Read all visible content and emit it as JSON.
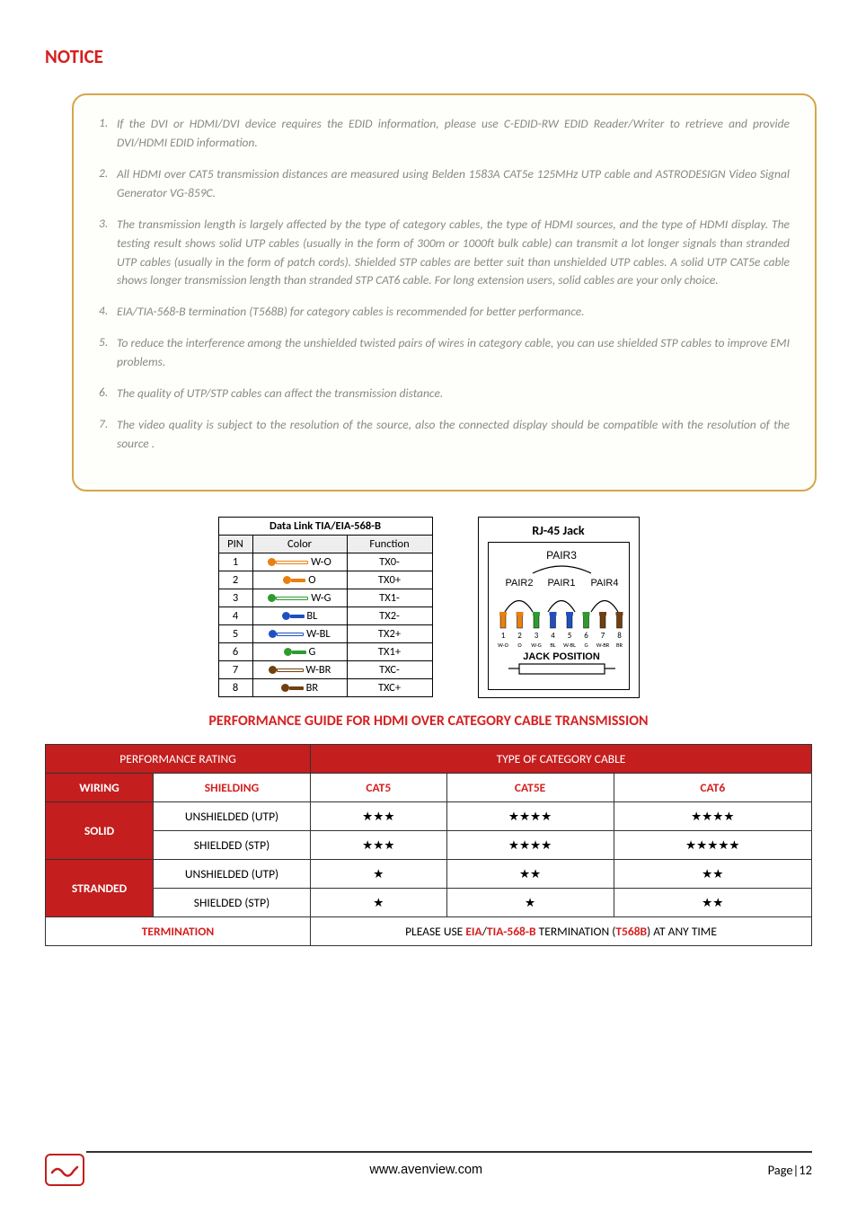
{
  "notice": {
    "title": "NOTICE",
    "items": [
      {
        "n": "1.",
        "t": "If the DVI or HDMI/DVI device requires the EDID information, please use C-EDID-RW EDID Reader/Writer to retrieve and provide DVI/HDMI EDID information."
      },
      {
        "n": "2.",
        "t": "All HDMI over CAT5 transmission distances are measured using Belden 1583A CAT5e 125MHz UTP cable and ASTRODESIGN Video Signal Generator VG-859C."
      },
      {
        "n": "3.",
        "t": "The transmission length is largely affected by the type of category cables, the type of HDMI sources, and the type of HDMI display. The testing result shows solid UTP cables (usually in the form of 300m or 1000ft bulk cable) can transmit a lot longer signals than stranded UTP cables (usually in the form of patch cords). Shielded STP cables are better suit than unshielded UTP cables. A solid UTP CAT5e cable shows longer transmission length than stranded STP CAT6 cable. For long extension users, solid cables are your only choice."
      },
      {
        "n": "4.",
        "t": "EIA/TIA-568-B termination (T568B) for category cables is recommended for better performance."
      },
      {
        "n": "5.",
        "t": "To reduce the interference among the unshielded twisted pairs of wires in category cable, you can use shielded STP cables to improve EMI problems."
      },
      {
        "n": "6.",
        "t": "The quality of UTP/STP cables can affect the transmission distance."
      },
      {
        "n": "7.",
        "t": "The video quality is subject to the resolution of the source, also the connected display should be compatible with the resolution of the source ."
      }
    ]
  },
  "datalink": {
    "title": "Data Link TIA/EIA-568-B",
    "cols": [
      "PIN",
      "Color",
      "Function"
    ],
    "rows": [
      {
        "pin": "1",
        "wire_cap": "#e88010",
        "wire_line": "#fff",
        "wire_border": "#e88010",
        "len": 36,
        "label": "W-O",
        "fn": "TX0-"
      },
      {
        "pin": "2",
        "wire_cap": "#e88010",
        "wire_line": "#e88010",
        "wire_border": "#e88010",
        "len": 16,
        "label": "O",
        "fn": "TX0+"
      },
      {
        "pin": "3",
        "wire_cap": "#2e9b2e",
        "wire_line": "#fff",
        "wire_border": "#2e9b2e",
        "len": 36,
        "label": "W-G",
        "fn": "TX1-"
      },
      {
        "pin": "4",
        "wire_cap": "#2050c0",
        "wire_line": "#2050c0",
        "wire_border": "#2050c0",
        "len": 16,
        "label": "BL",
        "fn": "TX2-"
      },
      {
        "pin": "5",
        "wire_cap": "#2050c0",
        "wire_line": "#fff",
        "wire_border": "#2050c0",
        "len": 30,
        "label": "W-BL",
        "fn": "TX2+"
      },
      {
        "pin": "6",
        "wire_cap": "#2e9b2e",
        "wire_line": "#2e9b2e",
        "wire_border": "#2e9b2e",
        "len": 16,
        "label": "G",
        "fn": "TX1+"
      },
      {
        "pin": "7",
        "wire_cap": "#704010",
        "wire_line": "#fff",
        "wire_border": "#704010",
        "len": 30,
        "label": "W-BR",
        "fn": "TXC-"
      },
      {
        "pin": "8",
        "wire_cap": "#704010",
        "wire_line": "#704010",
        "wire_border": "#704010",
        "len": 16,
        "label": "BR",
        "fn": "TXC+"
      }
    ]
  },
  "rj45": {
    "title": "RJ-45 Jack",
    "pairs": [
      "PAIR3",
      "PAIR2",
      "PAIR1",
      "PAIR4"
    ],
    "pins": [
      "1",
      "2",
      "3",
      "4",
      "5",
      "6",
      "7",
      "8"
    ],
    "pin_labels": [
      "W-O",
      "O",
      "W-G",
      "BL",
      "W-BL",
      "G",
      "W-BR",
      "BR"
    ],
    "pin_colors": [
      "#e88010",
      "#e88010",
      "#2e9b2e",
      "#2050c0",
      "#2050c0",
      "#2e9b2e",
      "#704010",
      "#704010"
    ],
    "jack_pos": "JACK POSITION"
  },
  "perf": {
    "title": "PERFORMANCE GUIDE FOR HDMI OVER CATEGORY CABLE TRANSMISSION",
    "h_rating": "PERFORMANCE RATING",
    "h_type": "TYPE OF CATEGORY CABLE",
    "h_wiring": "WIRING",
    "h_shielding": "SHIELDING",
    "h_cat5": "CAT5",
    "h_cat5e": "CAT5E",
    "h_cat6": "CAT6",
    "solid": "SOLID",
    "stranded": "STRANDED",
    "unshielded": "UNSHIELDED (UTP)",
    "shielded": "SHIELDED (STP)",
    "r1": [
      "★★★",
      "★★★★",
      "★★★★"
    ],
    "r2": [
      "★★★",
      "★★★★",
      "★★★★★"
    ],
    "r3": [
      "★",
      "★★",
      "★★"
    ],
    "r4": [
      "★",
      "★",
      "★★"
    ],
    "term": "TERMINATION",
    "term_prefix": "PLEASE USE ",
    "term_bold1": "EIA",
    "term_sep1": "/",
    "term_bold2": "TIA-568-B",
    "term_mid": " TERMINATION (",
    "term_bold3": "T568B",
    "term_suffix": ") AT ANY TIME"
  },
  "footer": {
    "url": "www.avenview.com",
    "page": "Page|12"
  }
}
